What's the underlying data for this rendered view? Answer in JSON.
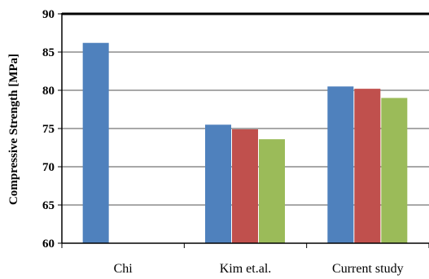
{
  "chart_data": {
    "type": "bar",
    "title": "",
    "xlabel": "",
    "ylabel": "Compressive Strength [MPa]",
    "ylim": [
      60,
      90
    ],
    "yticks": [
      60,
      65,
      70,
      75,
      80,
      85,
      90
    ],
    "grid": true,
    "legend": "none",
    "categories": [
      "Chi",
      "Kim et.al.",
      "Current study"
    ],
    "series": [
      {
        "values": [
          86.2,
          75.5,
          80.5
        ],
        "color": "#4F81BD"
      },
      {
        "values": [
          null,
          74.9,
          80.2
        ],
        "color": "#C0504D"
      },
      {
        "values": [
          null,
          73.6,
          79.0
        ],
        "color": "#9BBB59"
      }
    ]
  }
}
